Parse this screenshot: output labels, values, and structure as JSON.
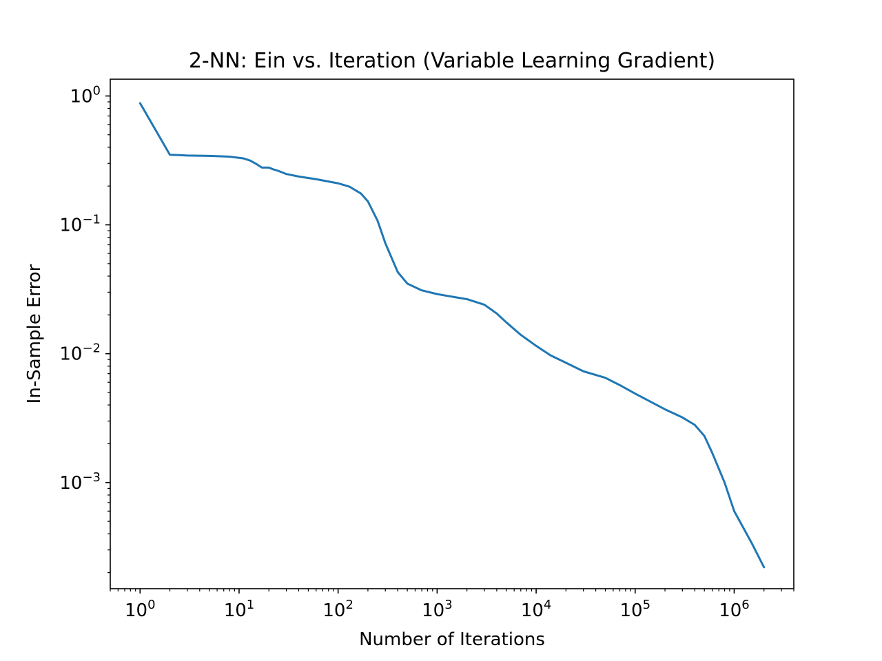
{
  "chart_data": {
    "type": "line",
    "title": "2-NN: Ein vs. Iteration (Variable Learning Gradient)",
    "xlabel": "Number of Iterations",
    "ylabel": "In-Sample Error",
    "xscale": "log",
    "yscale": "log",
    "xlim": [
      0.5,
      4000000
    ],
    "ylim": [
      0.00015,
      1.35
    ],
    "grid": false,
    "legend": "none",
    "line_color": "#1f77b4",
    "x_ticks": [
      {
        "base": "10",
        "exp": "0",
        "value": 1
      },
      {
        "base": "10",
        "exp": "1",
        "value": 10
      },
      {
        "base": "10",
        "exp": "2",
        "value": 100
      },
      {
        "base": "10",
        "exp": "3",
        "value": 1000
      },
      {
        "base": "10",
        "exp": "4",
        "value": 10000
      },
      {
        "base": "10",
        "exp": "5",
        "value": 100000
      },
      {
        "base": "10",
        "exp": "6",
        "value": 1000000
      }
    ],
    "y_ticks": [
      {
        "base": "10",
        "exp": "0",
        "value": 1
      },
      {
        "base": "10",
        "exp": "−1",
        "value": 0.1
      },
      {
        "base": "10",
        "exp": "−2",
        "value": 0.01
      },
      {
        "base": "10",
        "exp": "−3",
        "value": 0.001
      }
    ],
    "series": [
      {
        "x": [
          1,
          2,
          3,
          5,
          8,
          11,
          13,
          15,
          17,
          20,
          22,
          25,
          30,
          40,
          60,
          100,
          130,
          170,
          200,
          250,
          300,
          400,
          500,
          700,
          1000,
          1500,
          2000,
          3000,
          4000,
          5000,
          7000,
          10000,
          14000,
          20000,
          30000,
          50000,
          70000,
          100000,
          200000,
          300000,
          400000,
          500000,
          600000,
          800000,
          1000000,
          1500000,
          2000000
        ],
        "y": [
          0.88,
          0.35,
          0.345,
          0.343,
          0.338,
          0.328,
          0.315,
          0.296,
          0.278,
          0.278,
          0.27,
          0.262,
          0.248,
          0.237,
          0.226,
          0.21,
          0.198,
          0.175,
          0.152,
          0.108,
          0.072,
          0.043,
          0.035,
          0.031,
          0.029,
          0.0275,
          0.0265,
          0.024,
          0.0205,
          0.0175,
          0.014,
          0.0115,
          0.0097,
          0.0085,
          0.0073,
          0.0065,
          0.0057,
          0.0049,
          0.0037,
          0.0032,
          0.0028,
          0.0023,
          0.0017,
          0.001,
          0.0006,
          0.00034,
          0.00022
        ]
      }
    ]
  }
}
